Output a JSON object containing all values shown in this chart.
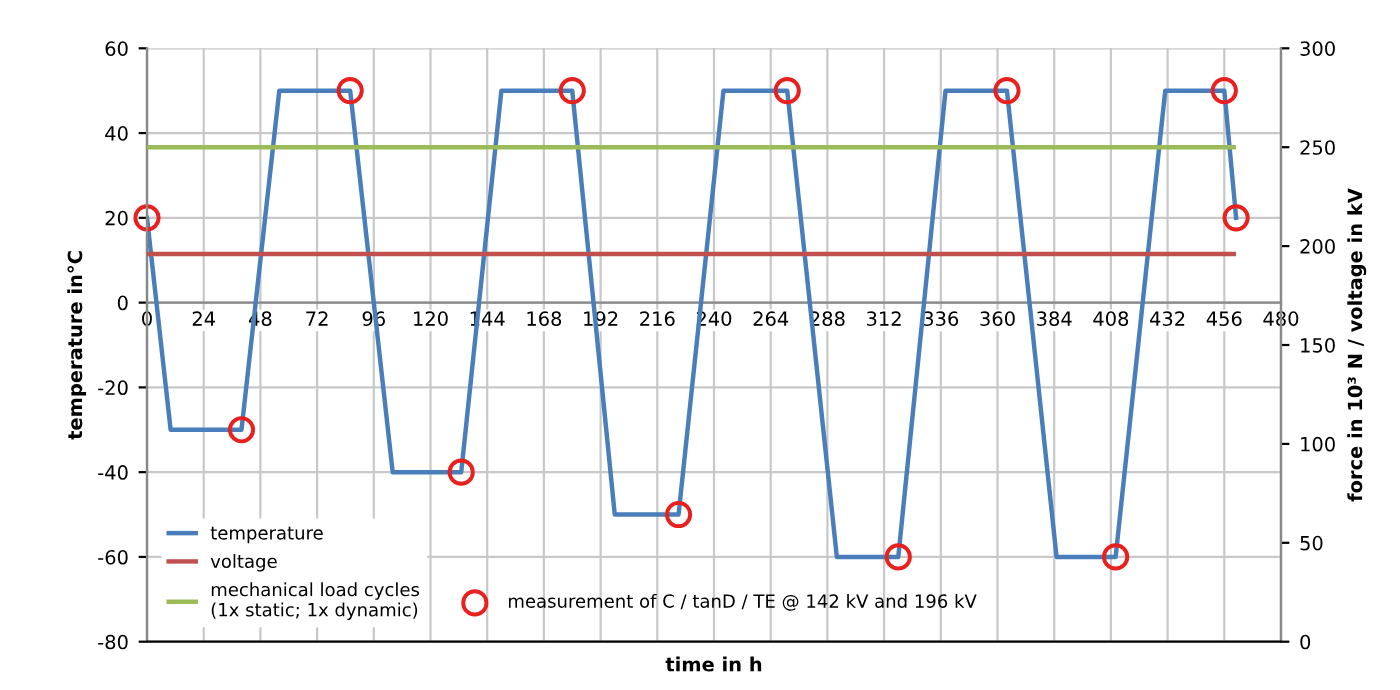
{
  "chart_data": {
    "type": "line",
    "xlabel": "time in h",
    "ylabel": "temperature in°C",
    "y2label": "force in 10³ N / voltage in kV",
    "xlim": [
      0,
      480
    ],
    "xticks": [
      0,
      24,
      48,
      72,
      96,
      120,
      144,
      168,
      192,
      216,
      240,
      264,
      288,
      312,
      336,
      360,
      384,
      408,
      432,
      456,
      480
    ],
    "ylim": [
      -80,
      60
    ],
    "yticks": [
      -80,
      -60,
      -40,
      -20,
      0,
      20,
      40,
      60
    ],
    "y2lim": [
      0,
      300
    ],
    "y2ticks": [
      0,
      50,
      100,
      150,
      200,
      250,
      300
    ],
    "grid": true,
    "legend": "bottom left",
    "line_style": "solid",
    "series": [
      {
        "name": "temperature",
        "color": "#4a7ebb",
        "x": [
          0,
          10,
          40,
          56,
          86,
          104,
          133,
          150,
          180,
          198,
          225,
          244,
          271,
          292,
          318,
          338,
          364,
          385,
          410,
          431,
          456,
          461
        ],
        "values": [
          20,
          -30,
          -30,
          50,
          50,
          -40,
          -40,
          50,
          50,
          -50,
          -50,
          50,
          50,
          -60,
          -60,
          50,
          50,
          -60,
          -60,
          50,
          50,
          20
        ]
      },
      {
        "name": "voltage",
        "color": "#c0504d",
        "axis": "y2",
        "x": [
          0,
          460
        ],
        "values": [
          196,
          196
        ]
      },
      {
        "name": "mechanical load cycles\n(1x static; 1x dynamic)",
        "color": "#9bbb59",
        "axis": "y2",
        "x": [
          0,
          460
        ],
        "values": [
          250,
          250
        ]
      },
      {
        "name": "measurement of C / tanD / TE @ 142 kV and 196 kV",
        "type": "scatter",
        "marker": "circle",
        "color": "#e8201e",
        "x": [
          0,
          40,
          86,
          133,
          180,
          225,
          271,
          318,
          364,
          410,
          456,
          461
        ],
        "values": [
          20,
          -30,
          50,
          -40,
          50,
          -50,
          50,
          -60,
          50,
          -60,
          50,
          20
        ]
      }
    ]
  }
}
